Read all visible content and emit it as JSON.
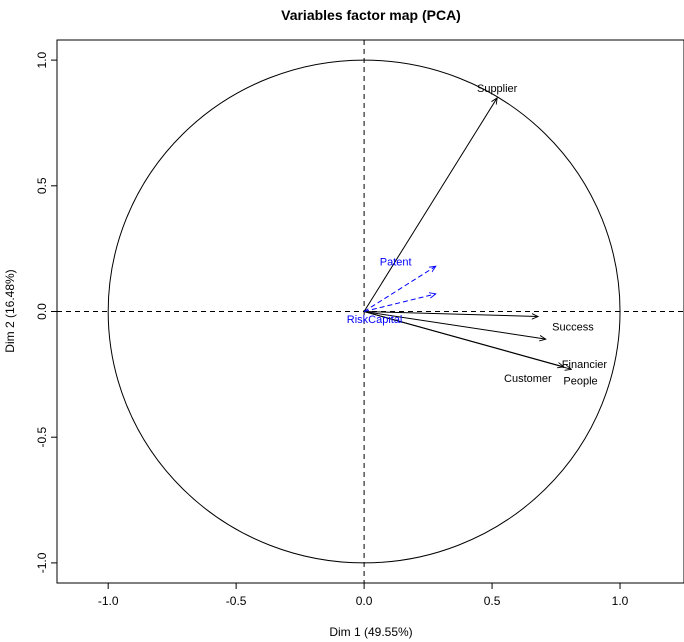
{
  "chart_data": {
    "type": "scatter",
    "title": "Variables factor map (PCA)",
    "xlabel": "Dim 1 (49.55%)",
    "ylabel": "Dim 2 (16.48%)",
    "xlim": [
      -1.2,
      1.25
    ],
    "ylim": [
      -1.08,
      1.08
    ],
    "xticks": [
      {
        "value": -1.0,
        "label": "-1.0"
      },
      {
        "value": -0.5,
        "label": "-0.5"
      },
      {
        "value": 0.0,
        "label": "0.0"
      },
      {
        "value": 0.5,
        "label": "0.5"
      },
      {
        "value": 1.0,
        "label": "1.0"
      }
    ],
    "yticks": [
      {
        "value": -1.0,
        "label": "-1.0"
      },
      {
        "value": -0.5,
        "label": "-0.5"
      },
      {
        "value": 0.0,
        "label": "0.0"
      },
      {
        "value": 0.5,
        "label": "0.5"
      },
      {
        "value": 1.0,
        "label": "1.0"
      }
    ],
    "unit_circle": true,
    "reference_lines": {
      "x": 0,
      "y": 0,
      "style": "dashed"
    },
    "active_color": "#000000",
    "supplementary_color": "#0000ff",
    "variables": [
      {
        "name": "Supplier",
        "x": 0.52,
        "y": 0.85,
        "supplementary": false
      },
      {
        "name": "Success",
        "x": 0.68,
        "y": -0.02,
        "supplementary": false
      },
      {
        "name": "Financier",
        "x": 0.71,
        "y": -0.11,
        "supplementary": false
      },
      {
        "name": "Customer",
        "x": 0.78,
        "y": -0.22,
        "supplementary": false
      },
      {
        "name": "People",
        "x": 0.81,
        "y": -0.23,
        "supplementary": false
      },
      {
        "name": "Patent",
        "x": 0.28,
        "y": 0.18,
        "supplementary": true
      },
      {
        "name": "RiskCapital",
        "x": 0.28,
        "y": 0.07,
        "supplementary": true
      }
    ]
  }
}
